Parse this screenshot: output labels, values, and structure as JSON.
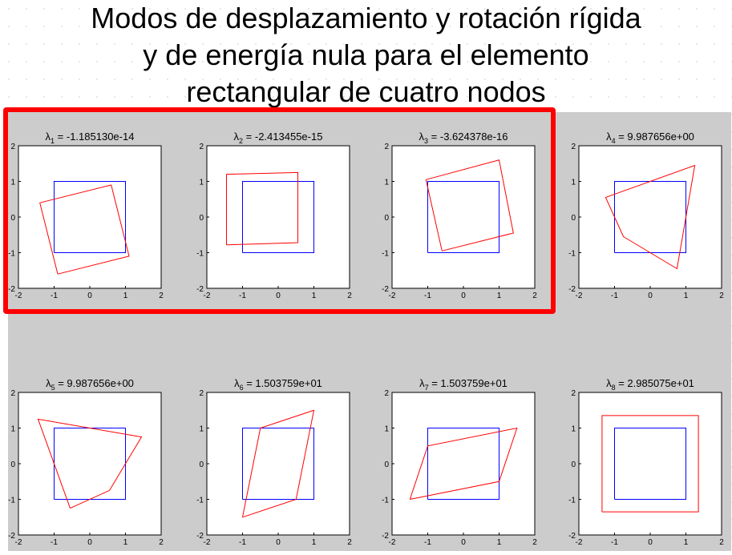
{
  "title_lines": [
    "Modos de desplazamiento y rotación rígida",
    "y de energía nula para el elemento",
    "rectangular de cuatro nodos"
  ],
  "colors": {
    "reference": "#0000ff",
    "deformed": "#ff0000",
    "highlight": "#ff0000",
    "figure_background": "#cccccc"
  },
  "highlighted_modes": [
    1,
    2,
    3
  ],
  "chart_data": [
    {
      "type": "line",
      "label_symbol": "λ",
      "label_index": "1",
      "label_value": "= -1.185130e-14",
      "xlim": [
        -2,
        2
      ],
      "ylim": [
        -2,
        2
      ],
      "xticks": [
        "-2",
        "-1",
        "0",
        "1",
        "2"
      ],
      "yticks": [
        "2",
        "1",
        "0",
        "-1",
        "-2"
      ],
      "series": [
        {
          "x": [
            -1,
            1,
            1,
            -1,
            -1
          ],
          "y": [
            -1,
            -1,
            1,
            1,
            -1
          ]
        },
        {
          "x": [
            -0.9,
            1.1,
            0.6,
            -1.4,
            -0.9
          ],
          "y": [
            -1.6,
            -1.1,
            0.9,
            0.4,
            -1.6
          ]
        }
      ]
    },
    {
      "type": "line",
      "label_symbol": "λ",
      "label_index": "2",
      "label_value": "= -2.413455e-15",
      "xlim": [
        -2,
        2
      ],
      "ylim": [
        -2,
        2
      ],
      "xticks": [
        "-2",
        "-1",
        "0",
        "1",
        "2"
      ],
      "yticks": [
        "2",
        "1",
        "0",
        "-1",
        "-2"
      ],
      "series": [
        {
          "x": [
            -1,
            1,
            1,
            -1,
            -1
          ],
          "y": [
            -1,
            -1,
            1,
            1,
            -1
          ]
        },
        {
          "x": [
            -1.45,
            0.55,
            0.55,
            -1.45,
            -1.45
          ],
          "y": [
            -0.78,
            -0.72,
            1.25,
            1.2,
            -0.78
          ]
        }
      ]
    },
    {
      "type": "line",
      "label_symbol": "λ",
      "label_index": "3",
      "label_value": "= -3.624378e-16",
      "xlim": [
        -2,
        2
      ],
      "ylim": [
        -2,
        2
      ],
      "xticks": [
        "-2",
        "-1",
        "0",
        "1",
        "2"
      ],
      "yticks": [
        "2",
        "1",
        "0",
        "-1",
        "-2"
      ],
      "series": [
        {
          "x": [
            -1,
            1,
            1,
            -1,
            -1
          ],
          "y": [
            -1,
            -1,
            1,
            1,
            -1
          ]
        },
        {
          "x": [
            -0.6,
            1.4,
            1.0,
            -1.05,
            -0.6
          ],
          "y": [
            -0.95,
            -0.45,
            1.6,
            1.05,
            -0.95
          ]
        }
      ]
    },
    {
      "type": "line",
      "label_symbol": "λ",
      "label_index": "4",
      "label_value": "= 9.987656e+00",
      "xlim": [
        -2,
        2
      ],
      "ylim": [
        -2,
        2
      ],
      "xticks": [
        "-2",
        "-1",
        "0",
        "1",
        "2"
      ],
      "yticks": [
        "2",
        "1",
        "0",
        "-1",
        "-2"
      ],
      "series": [
        {
          "x": [
            -1,
            1,
            1,
            -1,
            -1
          ],
          "y": [
            -1,
            -1,
            1,
            1,
            -1
          ]
        },
        {
          "x": [
            -0.75,
            0.75,
            1.25,
            -1.25,
            -0.75
          ],
          "y": [
            -0.55,
            -1.45,
            1.45,
            0.55,
            -0.55
          ]
        }
      ]
    },
    {
      "type": "line",
      "label_symbol": "λ",
      "label_index": "5",
      "label_value": "= 9.987656e+00",
      "xlim": [
        -2,
        2
      ],
      "ylim": [
        -2,
        2
      ],
      "xticks": [
        "-2",
        "-1",
        "0",
        "1",
        "2"
      ],
      "yticks": [
        "2",
        "1",
        "0",
        "-1",
        "-2"
      ],
      "series": [
        {
          "x": [
            -1,
            1,
            1,
            -1,
            -1
          ],
          "y": [
            -1,
            -1,
            1,
            1,
            -1
          ]
        },
        {
          "x": [
            -0.55,
            0.55,
            1.45,
            -1.45,
            -0.55
          ],
          "y": [
            -1.25,
            -0.75,
            0.75,
            1.25,
            -1.25
          ]
        }
      ]
    },
    {
      "type": "line",
      "label_symbol": "λ",
      "label_index": "6",
      "label_value": "= 1.503759e+01",
      "xlim": [
        -2,
        2
      ],
      "ylim": [
        -2,
        2
      ],
      "xticks": [
        "-2",
        "-1",
        "0",
        "1",
        "2"
      ],
      "yticks": [
        "2",
        "1",
        "0",
        "-1",
        "-2"
      ],
      "series": [
        {
          "x": [
            -1,
            1,
            1,
            -1,
            -1
          ],
          "y": [
            -1,
            -1,
            1,
            1,
            -1
          ]
        },
        {
          "x": [
            -1,
            0.5,
            1,
            -0.5,
            -1
          ],
          "y": [
            -1.5,
            -1,
            1.5,
            1,
            -1.5
          ]
        }
      ]
    },
    {
      "type": "line",
      "label_symbol": "λ",
      "label_index": "7",
      "label_value": "= 1.503759e+01",
      "xlim": [
        -2,
        2
      ],
      "ylim": [
        -2,
        2
      ],
      "xticks": [
        "-2",
        "-1",
        "0",
        "1",
        "2"
      ],
      "yticks": [
        "2",
        "1",
        "0",
        "-1",
        "-2"
      ],
      "series": [
        {
          "x": [
            -1,
            1,
            1,
            -1,
            -1
          ],
          "y": [
            -1,
            -1,
            1,
            1,
            -1
          ]
        },
        {
          "x": [
            -1.5,
            1,
            1.5,
            -1,
            -1.5
          ],
          "y": [
            -1,
            -0.5,
            1,
            0.5,
            -1
          ]
        }
      ]
    },
    {
      "type": "line",
      "label_symbol": "λ",
      "label_index": "8",
      "label_value": "= 2.985075e+01",
      "xlim": [
        -2,
        2
      ],
      "ylim": [
        -2,
        2
      ],
      "xticks": [
        "-2",
        "-1",
        "0",
        "1",
        "2"
      ],
      "yticks": [
        "2",
        "1",
        "0",
        "-1",
        "-2"
      ],
      "series": [
        {
          "x": [
            -1,
            1,
            1,
            -1,
            -1
          ],
          "y": [
            -1,
            -1,
            1,
            1,
            -1
          ]
        },
        {
          "x": [
            -1.35,
            1.35,
            1.35,
            -1.35,
            -1.35
          ],
          "y": [
            -1.35,
            -1.35,
            1.35,
            1.35,
            -1.35
          ]
        }
      ]
    }
  ]
}
